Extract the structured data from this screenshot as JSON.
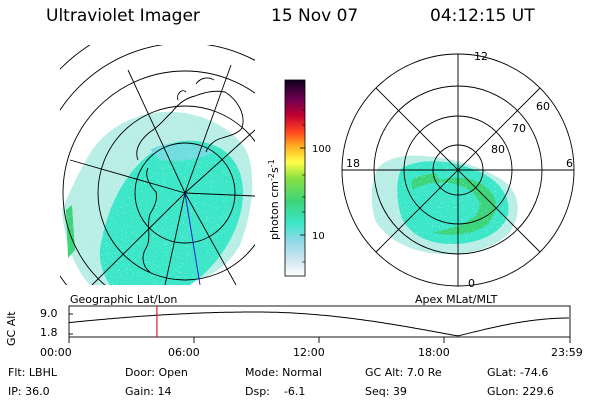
{
  "header": {
    "title": "Ultraviolet Imager",
    "date": "15 Nov 07",
    "time": "04:12:15 UT"
  },
  "colorbar": {
    "unit_prefix": "photon cm",
    "unit_exp1": "-2",
    "unit_s": "s",
    "unit_exp2": "-1",
    "tick_100": "100",
    "tick_10": "10"
  },
  "left_map": {
    "label": "Geographic Lat/Lon"
  },
  "right_map": {
    "label": "Apex MLat/MLT",
    "mlt_top": "12",
    "mlt_left": "18",
    "mlt_right": "6",
    "mlt_bottom": "0",
    "lat_60": "60",
    "lat_70": "70",
    "lat_80": "80"
  },
  "altitude": {
    "axis_label": "GC Alt",
    "y_top": "9.0",
    "y_bottom": "1.8",
    "x_ticks": [
      "00:00",
      "06:00",
      "12:00",
      "18:00",
      "23:59"
    ],
    "current_time_fraction": 0.1754
  },
  "status": {
    "flt": "Flt: LBHL",
    "ip": "IP: 36.0",
    "door": "Door: Open",
    "gain": "Gain: 14",
    "mode": "Mode: Normal",
    "dsp": "Dsp:    -6.1",
    "gcalt": "GC Alt: 7.0 Re",
    "seq": "Seq: 39",
    "glat": "GLat: -74.6",
    "glon": "GLon: 229.6"
  },
  "colors": {
    "aurora_main": "#3ce6c8",
    "aurora_edge": "#b8eee6",
    "aurora_bright": "#3cd47a",
    "orbit_marker": "#e02020",
    "meridian": "#1f1fd0"
  }
}
